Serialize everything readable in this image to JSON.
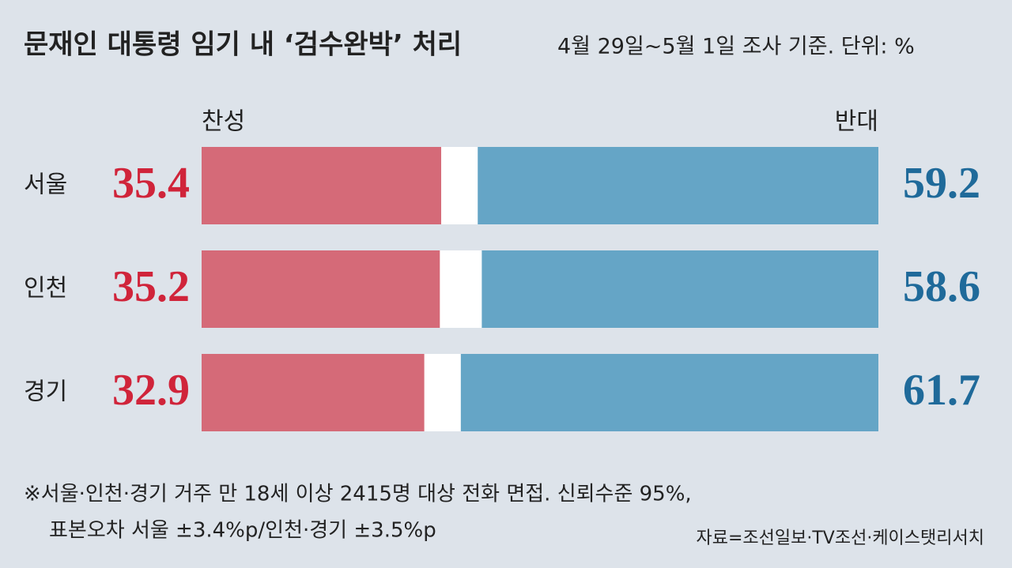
{
  "chart_data": {
    "type": "bar",
    "orientation": "horizontal",
    "title": "문재인 대통령 임기 내 ‘검수완박’ 처리",
    "subtitle": "4월 29일~5월 1일 조사 기준. 단위: %",
    "categories": [
      "서울",
      "인천",
      "경기"
    ],
    "series": [
      {
        "name": "찬성",
        "color": "#d56a78",
        "label_color": "#d0243a",
        "values": [
          35.4,
          35.2,
          32.9
        ]
      },
      {
        "name": "반대",
        "color": "#65a5c6",
        "label_color": "#1f6a9a",
        "values": [
          59.2,
          58.6,
          61.7
        ]
      }
    ],
    "xlim": [
      0,
      100
    ],
    "notes": [
      "※서울·인천·경기 거주 만 18세 이상 2415명 대상 전화 면접. 신뢰수준 95%,",
      "표본오차 서울  ±3.4%p/인천·경기  ±3.5%p"
    ],
    "source": "자료=조선일보·TV조선·케이스탯리서치"
  }
}
